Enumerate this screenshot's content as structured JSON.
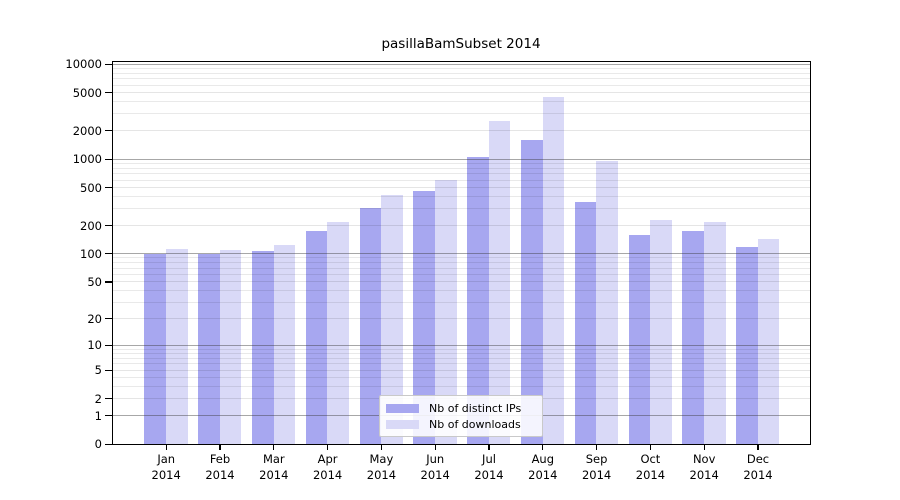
{
  "chart_data": {
    "type": "bar",
    "title": "pasillaBamSubset 2014",
    "categories": [
      "Jan 2014",
      "Feb 2014",
      "Mar 2014",
      "Apr 2014",
      "May 2014",
      "Jun 2014",
      "Jul 2014",
      "Aug 2014",
      "Sep 2014",
      "Oct 2014",
      "Nov 2014",
      "Dec 2014"
    ],
    "series": [
      {
        "name": "Nb of distinct IPs",
        "color": "#a7a7f0",
        "values": [
          100,
          99,
          107,
          176,
          303,
          465,
          1060,
          1600,
          355,
          158,
          176,
          117
        ]
      },
      {
        "name": "Nb of downloads",
        "color": "#d9d9f7",
        "values": [
          112,
          110,
          124,
          219,
          415,
          608,
          2500,
          4500,
          950,
          228,
          218,
          143
        ]
      }
    ],
    "xlabel": "",
    "ylabel": "",
    "yscale": "symlog",
    "y_ticks": [
      0,
      1,
      2,
      5,
      10,
      20,
      50,
      100,
      200,
      500,
      1000,
      2000,
      5000,
      10000
    ],
    "ylim": [
      0,
      10520
    ],
    "grid": true,
    "grid_above_bars": true,
    "legend_position": "lower center inside",
    "colors": {
      "bar_dark": "#a7a7f0",
      "bar_light": "#d9d9f7",
      "major_grid": "#b5b5b5",
      "minor_grid": "#e9e9e9",
      "axis": "#000000"
    }
  }
}
